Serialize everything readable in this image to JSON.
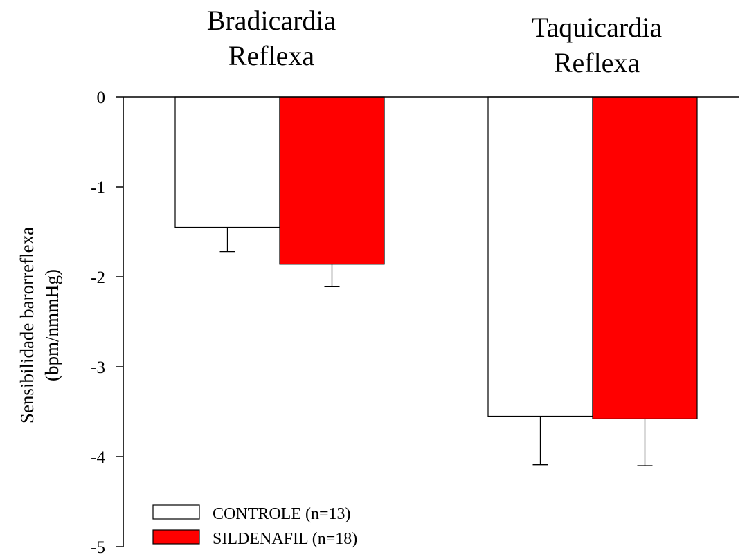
{
  "chart_data": {
    "type": "bar",
    "categories": [
      "Bradicardia Reflexa",
      "Taquicardia Reflexa"
    ],
    "category_title_lines": [
      [
        "Bradicardia",
        "Reflexa"
      ],
      [
        "Taquicardia",
        "Reflexa"
      ]
    ],
    "series": [
      {
        "name": "CONTROLE (n=13)",
        "values": [
          -1.45,
          -3.55
        ],
        "errors": [
          0.27,
          0.54
        ],
        "color": "#ffffff"
      },
      {
        "name": "SILDENAFIL (n=18)",
        "values": [
          -1.86,
          -3.58
        ],
        "errors": [
          0.25,
          0.52
        ],
        "color": "#ff0000"
      }
    ],
    "ylabel_lines": [
      "Sensibilidade barorreflexa",
      "(bpm/nmmHg)"
    ],
    "ylim": [
      -5,
      0
    ],
    "yticks": [
      0,
      -1,
      -2,
      -3,
      -4,
      -5
    ],
    "ytick_labels": [
      "0",
      "-1",
      "-2",
      "-3",
      "-4",
      "-5"
    ],
    "legend_position": "bottom-left",
    "grid": false
  }
}
